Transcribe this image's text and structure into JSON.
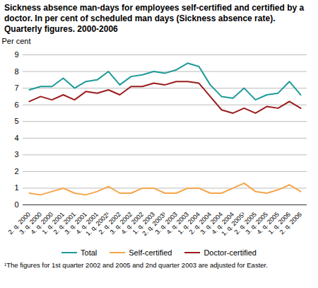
{
  "chart_data": {
    "type": "line",
    "title": "Sickness absence man-days for employees self-certified and certified by a doctor. In per cent of scheduled man days (Sickness absence rate). Quarterly figures. 2000-2006",
    "y_label": "Per cent",
    "categories": [
      "2. q. 2000",
      "3. q. 2000",
      "4. q. 2000",
      "1. q. 2001",
      "2. q. 2001",
      "3. q. 2001",
      "4. q. 2001",
      "1. q. 2002¹",
      "2. q. 2002",
      "3. q. 2002",
      "4. q. 2002",
      "1. q. 2003",
      "2. q. 2003¹",
      "3. q. 2003",
      "4. q. 2003",
      "1. q. 2004",
      "2. q. 2004",
      "3. q. 2004",
      "4. q. 2004",
      "1. q. 2005¹",
      "2. q. 2005",
      "3. q. 2005",
      "4. q. 2005",
      "1. q. 2006",
      "2. q. 2006"
    ],
    "series": [
      {
        "name": "Total",
        "color": "#1e9a9a",
        "line_style": "solid",
        "values": [
          6.9,
          7.1,
          7.1,
          7.6,
          7.0,
          7.4,
          7.5,
          8.0,
          7.2,
          7.7,
          7.8,
          8.0,
          7.9,
          8.1,
          8.5,
          8.3,
          7.2,
          6.5,
          6.4,
          7.0,
          6.3,
          6.6,
          6.7,
          7.4,
          6.6
        ]
      },
      {
        "name": "Self-certified",
        "color": "#f5a54a",
        "line_style": "solid",
        "values": [
          0.7,
          0.6,
          0.8,
          1.0,
          0.7,
          0.6,
          0.8,
          1.1,
          0.7,
          0.7,
          1.0,
          1.0,
          0.7,
          0.7,
          1.0,
          1.0,
          0.7,
          0.7,
          1.0,
          1.3,
          0.8,
          0.7,
          0.9,
          1.2,
          0.8
        ]
      },
      {
        "name": "Doctor-certified",
        "color": "#9b1c1c",
        "line_style": "solid",
        "values": [
          6.2,
          6.5,
          6.3,
          6.6,
          6.3,
          6.8,
          6.7,
          6.9,
          6.6,
          7.1,
          7.1,
          7.3,
          7.2,
          7.4,
          7.4,
          7.3,
          6.5,
          5.7,
          5.5,
          5.8,
          5.5,
          5.9,
          5.8,
          6.2,
          5.8
        ]
      }
    ],
    "ylim": [
      0,
      9
    ],
    "yticks": [
      0,
      1,
      2,
      3,
      4,
      5,
      6,
      7,
      8,
      9
    ],
    "grid": true,
    "legend": "bottom",
    "footnote": "¹The figures for 1st quarter 2002 and 2005 and 2nd quarter 2003 are adjusted for Easter."
  }
}
